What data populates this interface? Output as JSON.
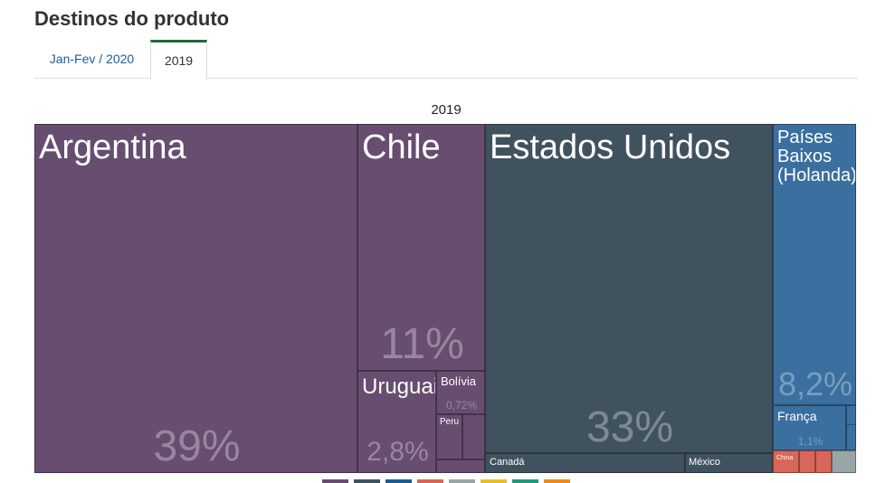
{
  "page": {
    "title": "Destinos do produto"
  },
  "tabs": [
    {
      "label": "Jan-Fev / 2020",
      "active": false
    },
    {
      "label": "2019",
      "active": true
    }
  ],
  "chart_data": {
    "type": "treemap",
    "title": "2019",
    "groups": [
      {
        "color": "#674d70",
        "items": [
          {
            "name": "Argentina",
            "pct_label": "39%"
          },
          {
            "name": "Chile",
            "pct_label": "11%"
          },
          {
            "name": "Uruguai",
            "pct_label": "2,8%"
          },
          {
            "name": "Bolívia",
            "pct_label": "0,72%"
          },
          {
            "name": "Peru",
            "pct_label": ""
          }
        ]
      },
      {
        "color": "#41525f",
        "items": [
          {
            "name": "Estados Unidos",
            "pct_label": "33%"
          },
          {
            "name": "Canadá",
            "pct_label": ""
          },
          {
            "name": "México",
            "pct_label": ""
          }
        ]
      },
      {
        "color": "#3a6fa0",
        "items": [
          {
            "name": "Países Baixos (Holanda)",
            "pct_label": "8,2%"
          },
          {
            "name": "França",
            "pct_label": "1,1%"
          }
        ]
      },
      {
        "color": "#d9665a",
        "items": [
          {
            "name": "China",
            "pct_label": ""
          }
        ]
      }
    ],
    "legend_colors": [
      "#674d70",
      "#41525f",
      "#1f5c8c",
      "#d9665a",
      "#9aa5a8",
      "#e6c029",
      "#1e9b7a",
      "#f08a1c"
    ]
  }
}
